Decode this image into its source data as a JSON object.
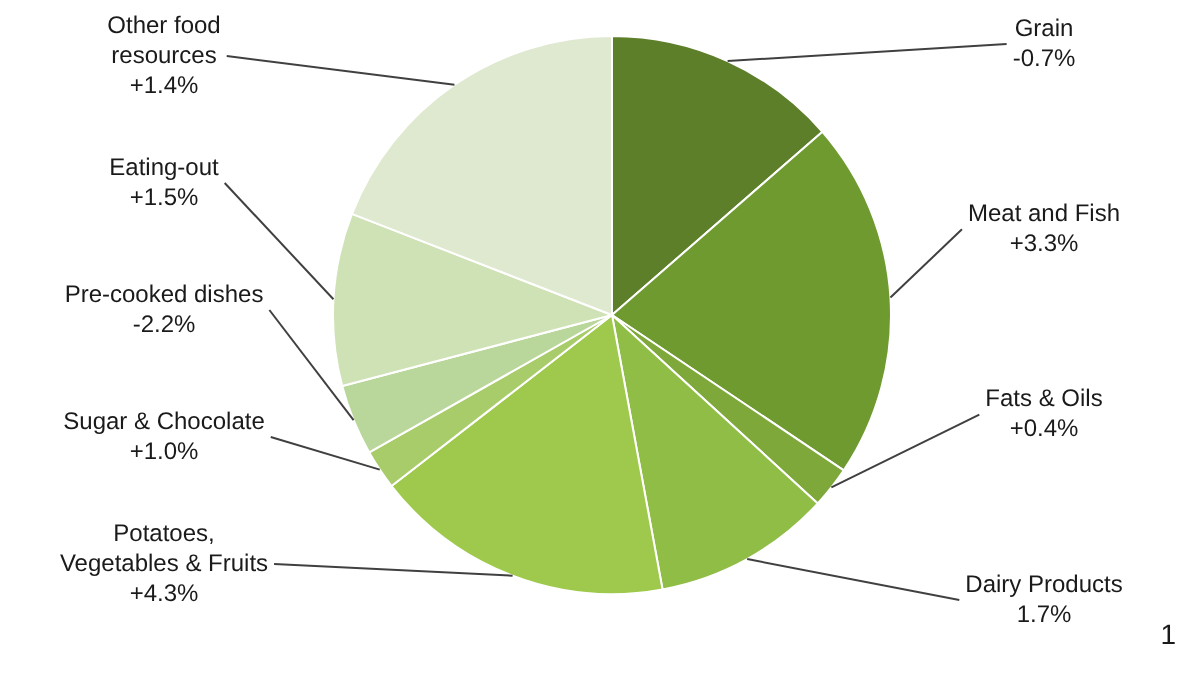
{
  "chart_data": {
    "type": "pie",
    "categories": [
      "Grain\n-0.7%",
      "Meat and Fish\n+3.3%",
      "Fats & Oils\n+0.4%",
      "Dairy Products\n1.7%",
      "Potatoes,\nVegetables & Fruits\n+4.3%",
      "Sugar & Chocolate\n+1.0%",
      "Pre-cooked dishes\n-2.2%",
      "Eating-out\n+1.5%",
      "Other food\nresources\n+1.4%"
    ],
    "values": [
      13.6,
      20.8,
      2.4,
      10.3,
      17.4,
      2.3,
      4.1,
      10.0,
      19.1
    ],
    "colors": [
      "#5e7f2a",
      "#6f9a30",
      "#7ea83a",
      "#8fbd45",
      "#9ec94c",
      "#a9cc6a",
      "#b9d79a",
      "#cfe2b5",
      "#dfe9cf"
    ],
    "legend": false,
    "annotations": [
      "1"
    ]
  }
}
